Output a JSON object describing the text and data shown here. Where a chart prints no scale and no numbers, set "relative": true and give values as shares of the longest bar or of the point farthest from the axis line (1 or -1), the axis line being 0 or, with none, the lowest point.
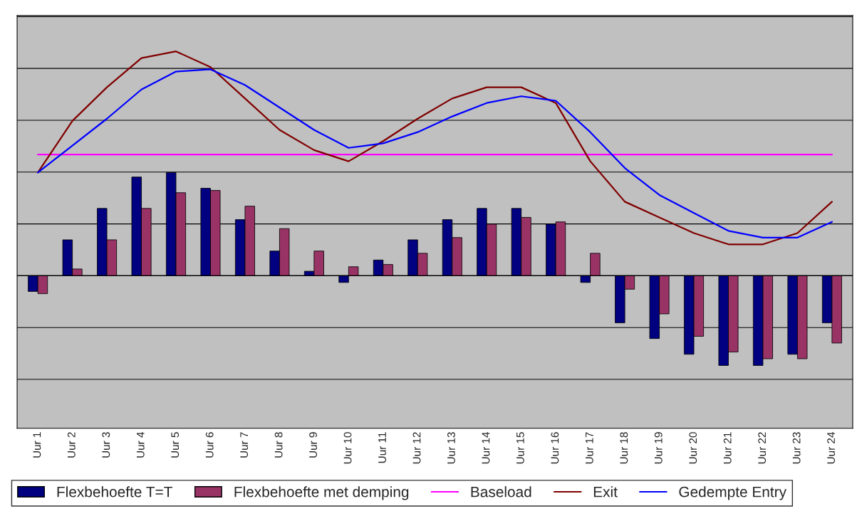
{
  "chart_data": {
    "type": "bar",
    "relative": true,
    "grid": "y",
    "legend": "bottom",
    "categories": [
      "Uur 1",
      "Uur 2",
      "Uur 3",
      "Uur 4",
      "Uur 5",
      "Uur 6",
      "Uur 7",
      "Uur 8",
      "Uur 9",
      "Uur 10",
      "Uur 11",
      "Uur 12",
      "Uur 13",
      "Uur 14",
      "Uur 15",
      "Uur 16",
      "Uur 17",
      "Uur 18",
      "Uur 19",
      "Uur 20",
      "Uur 21",
      "Uur 22",
      "Uur 23",
      "Uur 24"
    ],
    "series": [
      {
        "name": "Flexbehoefte T=T",
        "color": "#000080",
        "values": [
          -0.07,
          0.16,
          0.3,
          0.44,
          0.46,
          0.39,
          0.25,
          0.11,
          0.02,
          -0.03,
          0.07,
          0.16,
          0.25,
          0.3,
          0.3,
          0.23,
          -0.03,
          -0.21,
          -0.28,
          -0.35,
          -0.4,
          -0.4,
          -0.35,
          -0.21
        ]
      },
      {
        "name": "Flexbehoefte met demping",
        "color": "#993366",
        "values": [
          -0.08,
          0.03,
          0.16,
          0.3,
          0.37,
          0.38,
          0.31,
          0.21,
          0.11,
          0.04,
          0.05,
          0.1,
          0.17,
          0.23,
          0.26,
          0.24,
          0.1,
          -0.06,
          -0.17,
          -0.27,
          -0.34,
          -0.37,
          -0.37,
          -0.3
        ]
      },
      {
        "name": "Baseload",
        "type": "line",
        "color": "#ff00ff",
        "values": [
          0.54,
          0.54,
          0.54,
          0.54,
          0.54,
          0.54,
          0.54,
          0.54,
          0.54,
          0.54,
          0.54,
          0.54,
          0.54,
          0.54,
          0.54,
          0.54,
          0.54,
          0.54,
          0.54,
          0.54,
          0.54,
          0.54,
          0.54,
          0.54
        ]
      },
      {
        "name": "Exit",
        "type": "line",
        "color": "#800000",
        "values": [
          0.46,
          0.69,
          0.84,
          0.97,
          1,
          0.93,
          0.79,
          0.65,
          0.56,
          0.51,
          0.6,
          0.7,
          0.79,
          0.84,
          0.84,
          0.77,
          0.51,
          0.33,
          0.26,
          0.19,
          0.14,
          0.14,
          0.19,
          0.33
        ]
      },
      {
        "name": "Gedempte Entry",
        "type": "line",
        "color": "#0000ff",
        "values": [
          0.46,
          0.58,
          0.7,
          0.83,
          0.91,
          0.92,
          0.85,
          0.75,
          0.65,
          0.57,
          0.59,
          0.64,
          0.71,
          0.77,
          0.8,
          0.78,
          0.64,
          0.48,
          0.36,
          0.28,
          0.2,
          0.17,
          0.17,
          0.24
        ]
      }
    ]
  }
}
